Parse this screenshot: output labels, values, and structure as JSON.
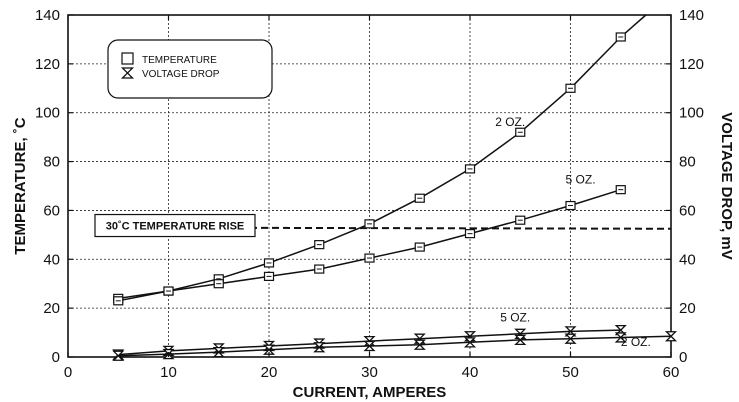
{
  "chart_data": {
    "type": "line",
    "title": "",
    "xlabel": "CURRENT, AMPERES",
    "ylabel": "TEMPERATURE, ˚C",
    "y2label": "VOLTAGE DROP, mV",
    "xlim": [
      0,
      60
    ],
    "ylim": [
      0,
      140
    ],
    "y2lim": [
      0,
      140
    ],
    "xticks": [
      "0",
      "10",
      "20",
      "30",
      "40",
      "50",
      "60"
    ],
    "yticks": [
      "0",
      "20",
      "40",
      "60",
      "80",
      "100",
      "120",
      "140"
    ],
    "y2ticks": [
      "0",
      "20",
      "40",
      "60",
      "80",
      "100",
      "120",
      "140"
    ],
    "grid": true,
    "legend": {
      "position": "top-left",
      "entries": [
        {
          "label": "TEMPERATURE",
          "marker": "square"
        },
        {
          "label": "VOLTAGE DROP",
          "marker": "hourglass"
        }
      ]
    },
    "reference_line": {
      "label": "30˚C TEMPERATURE RISE",
      "y_start": 53,
      "y_end": 52.5,
      "style": "dashed"
    },
    "series": [
      {
        "group": "TEMPERATURE",
        "label": "2 OZ.",
        "marker": "square",
        "x": [
          5,
          10,
          15,
          20,
          25,
          30,
          35,
          40,
          45,
          50,
          55
        ],
        "y": [
          24,
          27,
          32,
          38.5,
          46,
          54.5,
          65,
          77,
          92,
          110,
          131
        ],
        "tail_x": 57.5,
        "tail_y": 140
      },
      {
        "group": "TEMPERATURE",
        "label": "5 OZ.",
        "marker": "square",
        "x": [
          5,
          10,
          15,
          20,
          25,
          30,
          35,
          40,
          45,
          50,
          55
        ],
        "y": [
          23,
          27,
          30,
          33,
          36,
          40.5,
          45,
          50.5,
          56,
          62,
          68.5
        ]
      },
      {
        "group": "VOLTAGE DROP",
        "label": "5 OZ.",
        "marker": "hourglass",
        "x": [
          5,
          10,
          15,
          20,
          25,
          30,
          35,
          40,
          45,
          50,
          55
        ],
        "y": [
          1,
          2.5,
          3.5,
          4.5,
          5.5,
          6.5,
          7.5,
          8.5,
          9.5,
          10.5,
          11
        ]
      },
      {
        "group": "VOLTAGE DROP",
        "label": "2 OZ.",
        "marker": "hourglass",
        "x": [
          5,
          10,
          15,
          20,
          25,
          30,
          35,
          40,
          45,
          50,
          55,
          60
        ],
        "y": [
          0.5,
          1.2,
          2,
          3,
          4,
          4.5,
          5,
          6,
          7,
          7.5,
          8,
          8.5
        ]
      }
    ],
    "annotations": [
      {
        "text": "2 OZ.",
        "x": 44,
        "y": 94.5
      },
      {
        "text": "5 OZ.",
        "x": 51,
        "y": 71
      },
      {
        "text": "5 OZ.",
        "x": 44.5,
        "y": 14.5
      },
      {
        "text": "2 OZ.",
        "x": 56.5,
        "y": 4.5
      }
    ]
  }
}
